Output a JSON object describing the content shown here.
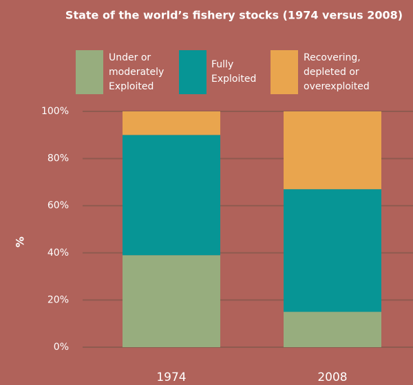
{
  "chart_data": {
    "type": "stacked_bar",
    "title": "State of the world’s fishery stocks (1974 versus 2008)",
    "y_label": "%",
    "categories": [
      "1974",
      "2008"
    ],
    "series": [
      {
        "name": "Under or moderately Exploited",
        "color": "#97ad7e",
        "values": [
          39,
          15
        ]
      },
      {
        "name": "Fully Exploited",
        "color": "#079595",
        "values": [
          51,
          52
        ]
      },
      {
        "name": "Recovering, depleted or overexploited",
        "color": "#e9a54e",
        "values": [
          10,
          33
        ]
      }
    ],
    "ylim": [
      0,
      100
    ],
    "yticks": [
      {
        "value": 0,
        "label": "0%"
      },
      {
        "value": 20,
        "label": "20%"
      },
      {
        "value": 40,
        "label": "40%"
      },
      {
        "value": 60,
        "label": "60%"
      },
      {
        "value": 80,
        "label": "80%"
      },
      {
        "value": 100,
        "label": "100%"
      }
    ],
    "grid": true
  }
}
